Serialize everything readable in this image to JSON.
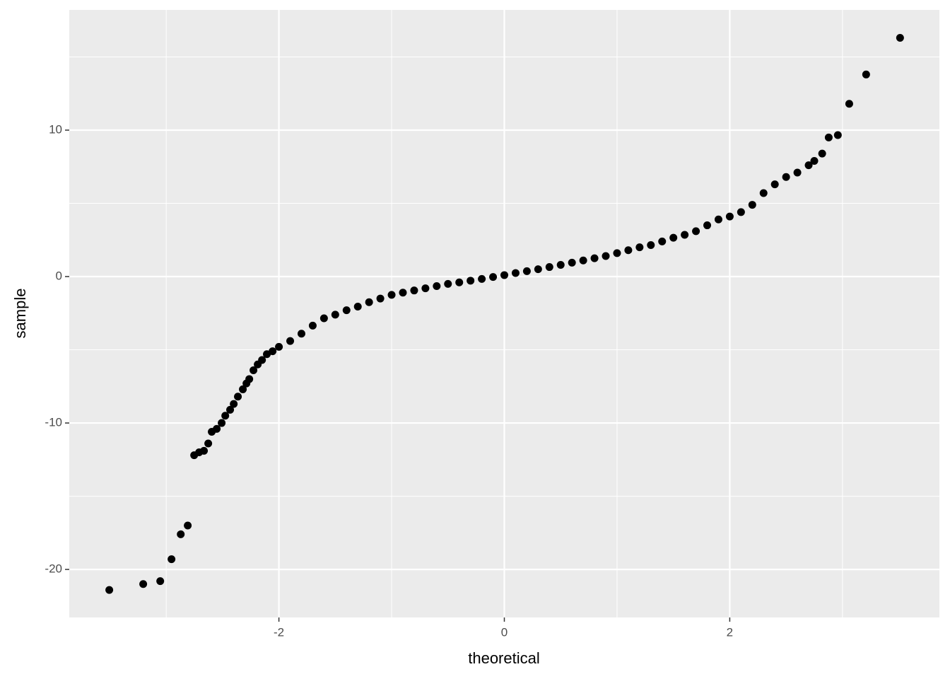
{
  "chart_data": {
    "type": "scatter",
    "x_label": "theoretical",
    "y_label": "sample",
    "color": "#000000",
    "grid": true,
    "xlim": [
      -3.86,
      3.86
    ],
    "ylim": [
      -23.28,
      18.21
    ],
    "xticks": [
      -2,
      0,
      2
    ],
    "yticks": [
      -20,
      -10,
      0,
      10
    ],
    "x": [
      -3.505,
      -3.204,
      -3.053,
      -2.953,
      -2.871,
      -2.809,
      -2.752,
      -2.708,
      -2.665,
      -2.627,
      -2.596,
      -2.552,
      -2.508,
      -2.476,
      -2.433,
      -2.401,
      -2.364,
      -2.32,
      -2.288,
      -2.263,
      -2.226,
      -2.188,
      -2.15,
      -2.107,
      -2.056,
      -2.0,
      -1.9,
      -1.8,
      -1.7,
      -1.6,
      -1.5,
      -1.4,
      -1.3,
      -1.2,
      -1.1,
      -1.0,
      -0.9,
      -0.8,
      -0.7,
      -0.6,
      -0.5,
      -0.4,
      -0.3,
      -0.2,
      -0.1,
      0.0,
      0.1,
      0.2,
      0.3,
      0.4,
      0.5,
      0.6,
      0.7,
      0.8,
      0.9,
      1.0,
      1.1,
      1.2,
      1.3,
      1.4,
      1.5,
      1.6,
      1.7,
      1.8,
      1.9,
      2.0,
      2.1,
      2.2,
      2.3,
      2.4,
      2.5,
      2.6,
      2.7,
      2.75,
      2.82,
      2.878,
      2.959,
      3.06,
      3.21,
      3.511
    ],
    "y": [
      -21.4,
      -21.0,
      -20.8,
      -19.3,
      -17.6,
      -17.0,
      -12.2,
      -12.0,
      -11.9,
      -11.4,
      -10.6,
      -10.4,
      -10.0,
      -9.5,
      -9.1,
      -8.7,
      -8.2,
      -7.7,
      -7.3,
      -7.0,
      -6.4,
      -6.0,
      -5.7,
      -5.3,
      -5.1,
      -4.8,
      -4.4,
      -3.9,
      -3.35,
      -2.85,
      -2.6,
      -2.3,
      -2.05,
      -1.75,
      -1.5,
      -1.25,
      -1.1,
      -0.95,
      -0.8,
      -0.65,
      -0.5,
      -0.4,
      -0.28,
      -0.16,
      -0.03,
      0.1,
      0.24,
      0.37,
      0.5,
      0.65,
      0.8,
      0.95,
      1.1,
      1.25,
      1.4,
      1.6,
      1.8,
      2.0,
      2.15,
      2.4,
      2.65,
      2.85,
      3.1,
      3.5,
      3.9,
      4.1,
      4.4,
      4.9,
      5.7,
      6.3,
      6.8,
      7.1,
      7.6,
      7.9,
      8.4,
      9.5,
      9.66,
      11.8,
      13.8,
      16.3
    ]
  }
}
